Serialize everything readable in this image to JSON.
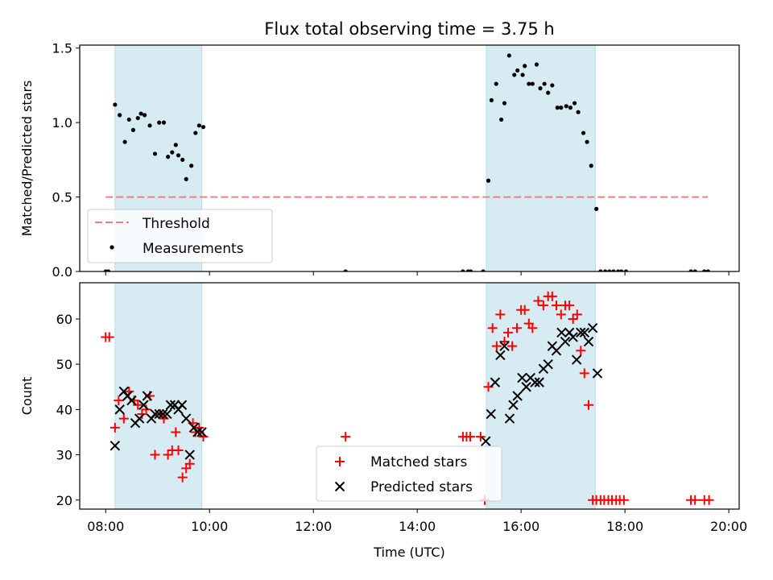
{
  "title": "Flux total observing time = 3.75 h",
  "colors": {
    "shade": "#add8e6",
    "threshold": "#f08080",
    "matched": "#ff0000",
    "predicted": "#000000",
    "measurement": "#000000"
  },
  "chart_data": [
    {
      "type": "scatter",
      "ylabel": "Matched/Predicted stars",
      "xlim": [
        7.5,
        20.2
      ],
      "ylim": [
        0,
        1.52
      ],
      "yticks": [
        "0.0",
        "0.5",
        "1.0",
        "1.5"
      ],
      "ytick_values": [
        0,
        0.5,
        1.0,
        1.5
      ],
      "shaded_intervals": [
        [
          8.18,
          9.85
        ],
        [
          15.33,
          17.43
        ]
      ],
      "threshold": {
        "name": "Threshold",
        "value": 0.5,
        "x_range": [
          8.0,
          19.6
        ]
      },
      "legend": {
        "position": "lower-left",
        "entries": [
          "Threshold",
          "Measurements"
        ]
      },
      "series": [
        {
          "name": "Measurements",
          "x": [
            8.0,
            8.05,
            8.18,
            8.27,
            8.37,
            8.45,
            8.53,
            8.62,
            8.68,
            8.75,
            8.85,
            8.95,
            9.03,
            9.12,
            9.2,
            9.28,
            9.35,
            9.4,
            9.48,
            9.55,
            9.65,
            9.73,
            9.8,
            9.88,
            12.62,
            14.88,
            14.98,
            15.03,
            15.27,
            15.37,
            15.43,
            15.52,
            15.62,
            15.68,
            15.77,
            15.87,
            15.93,
            16.03,
            16.07,
            16.15,
            16.22,
            16.3,
            16.37,
            16.45,
            16.52,
            16.6,
            16.7,
            16.77,
            16.87,
            16.95,
            17.03,
            17.1,
            17.2,
            17.27,
            17.35,
            17.45,
            17.53,
            17.62,
            17.7,
            17.78,
            17.87,
            17.93,
            18.02,
            19.27,
            19.35,
            19.53,
            19.6
          ],
          "y": [
            0.0,
            0.0,
            1.12,
            1.05,
            0.87,
            1.02,
            0.95,
            1.03,
            1.06,
            1.05,
            0.98,
            0.79,
            1.0,
            1.0,
            0.77,
            0.8,
            0.85,
            0.78,
            0.75,
            0.62,
            0.71,
            0.93,
            0.98,
            0.97,
            0.0,
            0.0,
            0.0,
            0.0,
            0.0,
            0.61,
            1.15,
            1.26,
            1.02,
            1.13,
            1.45,
            1.32,
            1.35,
            1.32,
            1.38,
            1.26,
            1.26,
            1.39,
            1.23,
            1.26,
            1.2,
            1.25,
            1.1,
            1.1,
            1.11,
            1.1,
            1.13,
            1.07,
            0.93,
            0.87,
            0.71,
            0.42,
            0.0,
            0.0,
            0.0,
            0.0,
            0.0,
            0.0,
            0.0,
            0.0,
            0.0,
            0.0,
            0.0
          ]
        }
      ]
    },
    {
      "type": "scatter",
      "xlabel": "Time (UTC)",
      "ylabel": "Count",
      "xlim": [
        7.5,
        20.2
      ],
      "ylim": [
        18,
        68
      ],
      "xticks": [
        "08:00",
        "10:00",
        "12:00",
        "14:00",
        "16:00",
        "18:00",
        "20:00"
      ],
      "xtick_values": [
        8,
        10,
        12,
        14,
        16,
        18,
        20
      ],
      "yticks": [
        "20",
        "30",
        "40",
        "50",
        "60"
      ],
      "ytick_values": [
        20,
        30,
        40,
        50,
        60
      ],
      "shaded_intervals": [
        [
          8.18,
          9.85
        ],
        [
          15.33,
          17.43
        ]
      ],
      "legend": {
        "position": "lower-center",
        "entries": [
          "Matched stars",
          "Predicted stars"
        ]
      },
      "series": [
        {
          "name": "Matched stars",
          "marker": "+",
          "x": [
            8.0,
            8.07,
            8.18,
            8.25,
            8.35,
            8.45,
            8.55,
            8.62,
            8.7,
            8.78,
            8.85,
            8.95,
            9.05,
            9.12,
            9.2,
            9.28,
            9.35,
            9.4,
            9.48,
            9.55,
            9.62,
            9.68,
            9.73,
            9.8,
            9.88,
            12.62,
            14.88,
            14.95,
            15.02,
            15.22,
            15.3,
            15.37,
            15.45,
            15.53,
            15.6,
            15.68,
            15.75,
            15.83,
            15.92,
            16.0,
            16.07,
            16.15,
            16.22,
            16.33,
            16.43,
            16.52,
            16.6,
            16.68,
            16.77,
            16.85,
            16.93,
            17.0,
            17.08,
            17.15,
            17.22,
            17.3,
            17.38,
            17.45,
            17.53,
            17.6,
            17.68,
            17.75,
            17.83,
            17.9,
            17.98,
            19.27,
            19.35,
            19.53,
            19.62
          ],
          "y": [
            56,
            56,
            36,
            42,
            38,
            44,
            42,
            41,
            39,
            40,
            43,
            30,
            39,
            38,
            30,
            31,
            35,
            31,
            25,
            27,
            28,
            37,
            35,
            36,
            34,
            34,
            34,
            34,
            34,
            34,
            20,
            45,
            58,
            54,
            61,
            55,
            57,
            54,
            58,
            62,
            62,
            59,
            58,
            64,
            63,
            65,
            65,
            63,
            61,
            63,
            63,
            60,
            61,
            53,
            48,
            41,
            20,
            20,
            20,
            20,
            20,
            20,
            20,
            20,
            20,
            20,
            20,
            20,
            20
          ]
        },
        {
          "name": "Predicted stars",
          "marker": "x",
          "x": [
            8.18,
            8.27,
            8.35,
            8.42,
            8.5,
            8.57,
            8.65,
            8.73,
            8.8,
            8.88,
            8.95,
            9.03,
            9.1,
            9.18,
            9.25,
            9.33,
            9.4,
            9.47,
            9.55,
            9.62,
            9.7,
            9.77,
            9.85,
            15.32,
            15.42,
            15.5,
            15.6,
            15.68,
            15.78,
            15.85,
            15.93,
            16.02,
            16.1,
            16.18,
            16.27,
            16.35,
            16.43,
            16.52,
            16.6,
            16.68,
            16.78,
            16.85,
            16.93,
            17.0,
            17.07,
            17.15,
            17.22,
            17.3,
            17.38,
            17.47
          ],
          "y": [
            32,
            40,
            44,
            43,
            42,
            37,
            38,
            41,
            43,
            38,
            39,
            39,
            39,
            39,
            41,
            41,
            40,
            41,
            38,
            30,
            36,
            35,
            35,
            33,
            39,
            46,
            52,
            54,
            38,
            41,
            43,
            47,
            45,
            47,
            46,
            46,
            49,
            50,
            54,
            53,
            57,
            55,
            57,
            56,
            51,
            57,
            57,
            55,
            58,
            48
          ]
        }
      ]
    }
  ]
}
